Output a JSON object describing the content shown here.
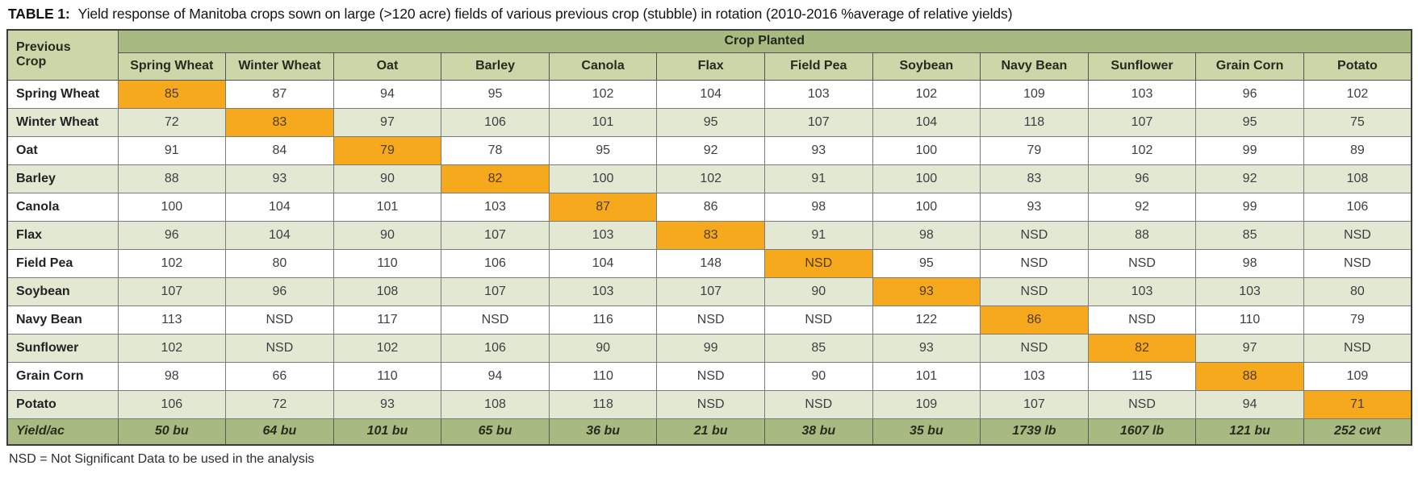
{
  "title": {
    "tag": "TABLE 1:",
    "text": "Yield response of Manitoba crops sown on large (>120 acre) fields of various previous crop (stubble) in rotation (2010-2016 %average of relative yields)"
  },
  "footnote": "NSD = Not Significant Data to be used in the analysis",
  "colors": {
    "header_band_green": "#a8ba81",
    "subheader_green": "#ccd6a9",
    "alt_row_green": "#e3e8d3",
    "highlight_orange": "#f7a91d",
    "grid_line": "#7c7c7c",
    "outer_border": "#3c3c3c"
  },
  "table": {
    "corner_header_lines": [
      "Previous",
      "Crop"
    ],
    "group_header": "Crop Planted",
    "columns": [
      "Spring Wheat",
      "Winter Wheat",
      "Oat",
      "Barley",
      "Canola",
      "Flax",
      "Field Pea",
      "Soybean",
      "Navy Bean",
      "Sunflower",
      "Grain Corn",
      "Potato"
    ],
    "rows": [
      {
        "label": "Spring Wheat",
        "values": [
          "85",
          "87",
          "94",
          "95",
          "102",
          "104",
          "103",
          "102",
          "109",
          "103",
          "96",
          "102"
        ]
      },
      {
        "label": "Winter Wheat",
        "values": [
          "72",
          "83",
          "97",
          "106",
          "101",
          "95",
          "107",
          "104",
          "118",
          "107",
          "95",
          "75"
        ]
      },
      {
        "label": "Oat",
        "values": [
          "91",
          "84",
          "79",
          "78",
          "95",
          "92",
          "93",
          "100",
          "79",
          "102",
          "99",
          "89"
        ]
      },
      {
        "label": "Barley",
        "values": [
          "88",
          "93",
          "90",
          "82",
          "100",
          "102",
          "91",
          "100",
          "83",
          "96",
          "92",
          "108"
        ]
      },
      {
        "label": "Canola",
        "values": [
          "100",
          "104",
          "101",
          "103",
          "87",
          "86",
          "98",
          "100",
          "93",
          "92",
          "99",
          "106"
        ]
      },
      {
        "label": "Flax",
        "values": [
          "96",
          "104",
          "90",
          "107",
          "103",
          "83",
          "91",
          "98",
          "NSD",
          "88",
          "85",
          "NSD"
        ]
      },
      {
        "label": "Field Pea",
        "values": [
          "102",
          "80",
          "110",
          "106",
          "104",
          "148",
          "NSD",
          "95",
          "NSD",
          "NSD",
          "98",
          "NSD"
        ]
      },
      {
        "label": "Soybean",
        "values": [
          "107",
          "96",
          "108",
          "107",
          "103",
          "107",
          "90",
          "93",
          "NSD",
          "103",
          "103",
          "80"
        ]
      },
      {
        "label": "Navy Bean",
        "values": [
          "113",
          "NSD",
          "117",
          "NSD",
          "116",
          "NSD",
          "NSD",
          "122",
          "86",
          "NSD",
          "110",
          "79"
        ]
      },
      {
        "label": "Sunflower",
        "values": [
          "102",
          "NSD",
          "102",
          "106",
          "90",
          "99",
          "85",
          "93",
          "NSD",
          "82",
          "97",
          "NSD"
        ]
      },
      {
        "label": "Grain Corn",
        "values": [
          "98",
          "66",
          "110",
          "94",
          "110",
          "NSD",
          "90",
          "101",
          "103",
          "115",
          "88",
          "109"
        ]
      },
      {
        "label": "Potato",
        "values": [
          "106",
          "72",
          "93",
          "108",
          "118",
          "NSD",
          "NSD",
          "109",
          "107",
          "NSD",
          "94",
          "71"
        ]
      }
    ],
    "highlight_rule": "diagonal",
    "yield_row": {
      "label": "Yield/ac",
      "values": [
        "50 bu",
        "64 bu",
        "101 bu",
        "65 bu",
        "36 bu",
        "21 bu",
        "38 bu",
        "35 bu",
        "1739 lb",
        "1607 lb",
        "121 bu",
        "252 cwt"
      ]
    }
  }
}
